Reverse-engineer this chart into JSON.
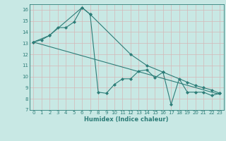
{
  "line1_x": [
    0,
    1,
    2,
    3,
    4,
    5,
    6,
    7,
    8,
    9,
    10,
    11,
    12,
    13,
    14,
    15,
    16,
    17,
    18,
    19,
    20,
    21,
    22,
    23
  ],
  "line1_y": [
    13.1,
    13.3,
    13.7,
    14.4,
    14.4,
    14.9,
    16.2,
    15.6,
    8.6,
    8.5,
    9.3,
    9.8,
    9.8,
    10.5,
    10.6,
    9.9,
    10.4,
    7.5,
    9.8,
    8.6,
    8.6,
    8.6,
    8.3,
    8.5
  ],
  "line2_x": [
    0,
    23
  ],
  "line2_y": [
    13.1,
    8.4
  ],
  "line3_x": [
    0,
    2,
    6,
    7,
    12,
    14,
    16,
    19,
    20,
    21,
    22,
    23
  ],
  "line3_y": [
    13.1,
    13.7,
    16.2,
    15.6,
    12.0,
    11.0,
    10.4,
    9.5,
    9.2,
    9.0,
    8.8,
    8.5
  ],
  "color": "#2d7d78",
  "bg_color": "#c8e8e4",
  "grid_color": "#b0d4d0",
  "xlabel": "Humidex (Indice chaleur)",
  "xlim": [
    -0.5,
    23.5
  ],
  "ylim": [
    7,
    16.5
  ],
  "yticks": [
    7,
    8,
    9,
    10,
    11,
    12,
    13,
    14,
    15,
    16
  ],
  "xticks": [
    0,
    1,
    2,
    3,
    4,
    5,
    6,
    7,
    8,
    9,
    10,
    11,
    12,
    13,
    14,
    15,
    16,
    17,
    18,
    19,
    20,
    21,
    22,
    23
  ],
  "marker": "D",
  "marker_size": 2.0,
  "linewidth": 0.8,
  "title_fontsize": 7,
  "xlabel_fontsize": 6,
  "tick_fontsize": 5
}
